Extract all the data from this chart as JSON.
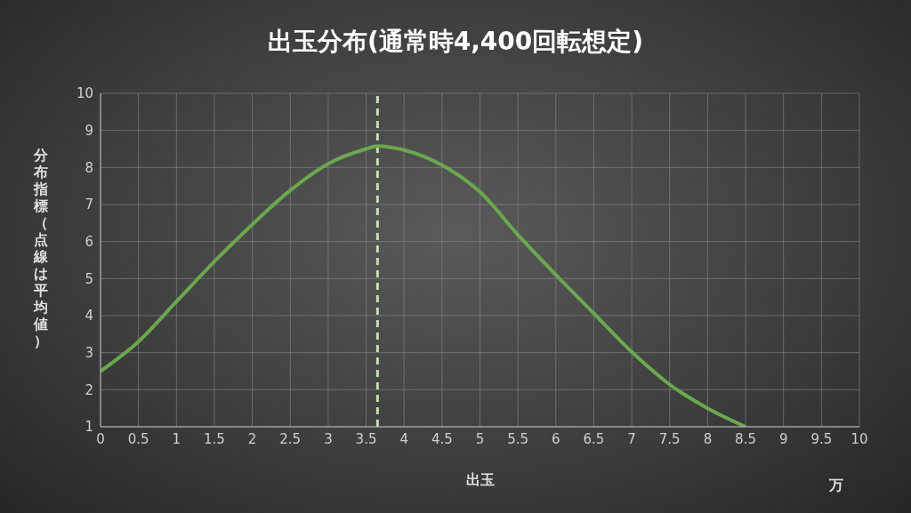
{
  "chart_data": {
    "type": "line",
    "title": "出玉分布(通常時4,400回転想定)",
    "xlabel": "出玉",
    "ylabel": "分布指標（点線は平均値）",
    "annotations": [
      "万"
    ],
    "x": [
      0,
      0.5,
      1,
      1.5,
      2,
      2.5,
      3,
      3.5,
      3.65,
      4,
      4.5,
      5,
      5.5,
      6,
      6.5,
      7,
      7.5,
      8,
      8.5
    ],
    "series": [
      {
        "color": "#6aa84f",
        "values": [
          2.5,
          3.3,
          4.38,
          5.46,
          6.46,
          7.38,
          8.1,
          8.5,
          8.58,
          8.47,
          8.06,
          7.34,
          6.18,
          5.1,
          4.06,
          3.02,
          2.14,
          1.5,
          1.0
        ]
      }
    ],
    "xlim": [
      0,
      10
    ],
    "xticks": [
      0,
      0.5,
      1,
      1.5,
      2,
      2.5,
      3,
      3.5,
      4,
      4.5,
      5,
      5.5,
      6,
      6.5,
      7,
      7.5,
      8,
      8.5,
      9,
      9.5,
      10
    ],
    "ylim": [
      1,
      10
    ],
    "yticks": [
      1,
      2,
      3,
      4,
      5,
      6,
      7,
      8,
      9,
      10
    ],
    "ref_lines": [
      {
        "axis": "x",
        "value": 3.65,
        "color": "#c5e0b4",
        "line_style": "dashed"
      }
    ],
    "grid": true,
    "marker": "none",
    "line_style": "solid",
    "legend": false
  }
}
